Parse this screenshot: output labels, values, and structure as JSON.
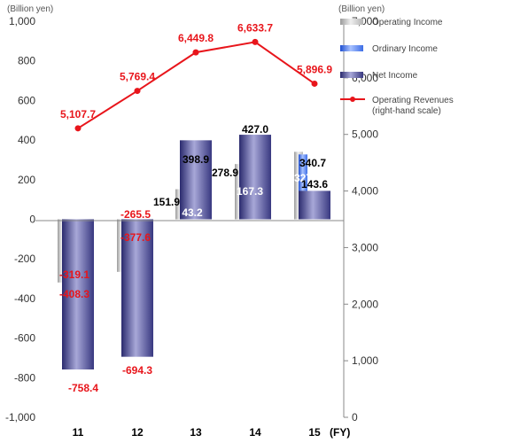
{
  "chart_data": {
    "type": "bar",
    "left_axis_unit": "(Billion  yen)",
    "right_axis_unit": "(Billion  yen)",
    "x_unit": "(FY)",
    "categories": [
      "11",
      "12",
      "13",
      "14",
      "15"
    ],
    "ylim_left": [
      -1000,
      1000
    ],
    "ylim_right": [
      0,
      7000
    ],
    "y_left_ticks": [
      "1,000",
      "800",
      "600",
      "400",
      "200",
      "0",
      "-200",
      "-400",
      "-600",
      "-800",
      "-1,000"
    ],
    "y_right_ticks": [
      "7,000",
      "6,000",
      "5,000",
      "4,000",
      "3,000",
      "2,000",
      "1,000",
      "0"
    ],
    "grid": false,
    "legend_position": "top-right",
    "series": [
      {
        "name": "Operating Income",
        "type": "bar",
        "axis": "left",
        "color": "#c8c8c8",
        "values": [
          -319.1,
          -265.5,
          151.9,
          278.9,
          340.7
        ],
        "labels": [
          "-319.1",
          "-265.5",
          "151.9",
          "278.9",
          "340.7"
        ],
        "label_color": "#000000"
      },
      {
        "name": "Ordinary Income",
        "type": "bar",
        "axis": "left",
        "color": "#4f81e8",
        "values": [
          -408.3,
          -377.6,
          43.2,
          167.3,
          327.5
        ],
        "labels": [
          "-408.3",
          "-377.6",
          "43.2",
          "167.3",
          "327.5"
        ],
        "label_color": "#ffffff"
      },
      {
        "name": "Net Income",
        "type": "bar",
        "axis": "left",
        "color": "#4a4a9c",
        "values": [
          -758.4,
          -694.3,
          398.9,
          427.0,
          143.6
        ],
        "labels": [
          "-758.4",
          "-694.3",
          "398.9",
          "427.0",
          "143.6"
        ],
        "label_color": "#000000"
      },
      {
        "name": "Operating Revenues",
        "name_line2": "(right-hand scale)",
        "type": "line",
        "axis": "right",
        "color": "#e8151b",
        "values": [
          5107.7,
          5769.4,
          6449.8,
          6633.7,
          5896.9
        ],
        "labels": [
          "5,107.7",
          "5,769.4",
          "6,449.8",
          "6,633.7",
          "5,896.9"
        ],
        "label_color": "#e8151b"
      }
    ]
  }
}
